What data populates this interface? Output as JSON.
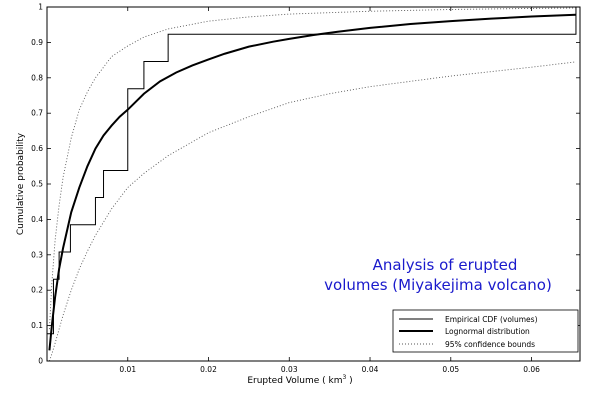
{
  "chart_data": {
    "type": "line",
    "title": "",
    "xlabel": "Erupted Volume ( km",
    "xlabel_sup": "3",
    "xlabel_end": " )",
    "ylabel": "Cumulative probability",
    "xlim": [
      0,
      0.066
    ],
    "ylim": [
      0,
      1
    ],
    "xticks": [
      0.01,
      0.02,
      0.03,
      0.04,
      0.05,
      0.06
    ],
    "xtick_labels": [
      "0.01",
      "0.02",
      "0.03",
      "0.04",
      "0.05",
      "0.06"
    ],
    "yticks": [
      0,
      0.1,
      0.2,
      0.3,
      0.4,
      0.5,
      0.6,
      0.7,
      0.8,
      0.9,
      1
    ],
    "ytick_labels": [
      "0",
      "0.1",
      "0.2",
      "0.3",
      "0.4",
      "0.5",
      "0.6",
      "0.7",
      "0.8",
      "0.9",
      "1"
    ],
    "grid": false,
    "legend_position": "bottom-right",
    "annotation": [
      "Analysis of erupted",
      "volumes (Miyakejima volcano)"
    ],
    "series": [
      {
        "name": "Empirical CDF (volumes)",
        "style": "stairs",
        "x": [
          0,
          0.0008,
          0.0008,
          0.0015,
          0.0015,
          0.0029,
          0.0029,
          0.0035,
          0.0035,
          0.006,
          0.006,
          0.007,
          0.007,
          0.01,
          0.01,
          0.012,
          0.012,
          0.015,
          0.015,
          0.0655,
          0.0655
        ],
        "y": [
          0.077,
          0.077,
          0.231,
          0.231,
          0.308,
          0.308,
          0.385,
          0.385,
          0.385,
          0.385,
          0.462,
          0.462,
          0.538,
          0.538,
          0.769,
          0.769,
          0.846,
          0.846,
          0.923,
          0.923,
          1.0
        ]
      },
      {
        "name": "Lognormal distribution",
        "style": "solid-thick",
        "x": [
          0.0003,
          0.0006,
          0.001,
          0.0015,
          0.002,
          0.003,
          0.004,
          0.005,
          0.006,
          0.007,
          0.008,
          0.009,
          0.01,
          0.012,
          0.014,
          0.016,
          0.018,
          0.02,
          0.022,
          0.025,
          0.028,
          0.03,
          0.033,
          0.036,
          0.04,
          0.045,
          0.05,
          0.055,
          0.06,
          0.0655
        ],
        "y": [
          0.03,
          0.1,
          0.18,
          0.26,
          0.32,
          0.42,
          0.49,
          0.55,
          0.6,
          0.637,
          0.665,
          0.69,
          0.71,
          0.755,
          0.79,
          0.815,
          0.835,
          0.852,
          0.868,
          0.888,
          0.902,
          0.91,
          0.921,
          0.93,
          0.941,
          0.952,
          0.96,
          0.967,
          0.973,
          0.978
        ]
      },
      {
        "name": "95% confidence bounds",
        "style": "dotted",
        "x": [
          0.0003,
          0.0006,
          0.001,
          0.0015,
          0.002,
          0.003,
          0.004,
          0.005,
          0.006,
          0.008,
          0.01,
          0.012,
          0.015,
          0.02,
          0.025,
          0.03,
          0.04,
          0.05,
          0.06,
          0.0655
        ],
        "y": [
          0.09,
          0.22,
          0.34,
          0.44,
          0.52,
          0.63,
          0.71,
          0.76,
          0.8,
          0.86,
          0.89,
          0.915,
          0.938,
          0.96,
          0.972,
          0.98,
          0.988,
          0.993,
          0.996,
          0.997
        ]
      },
      {
        "name": "95% confidence bounds",
        "style": "dotted",
        "x": [
          0.0003,
          0.0006,
          0.001,
          0.0015,
          0.002,
          0.003,
          0.004,
          0.005,
          0.006,
          0.008,
          0.01,
          0.012,
          0.015,
          0.02,
          0.025,
          0.03,
          0.035,
          0.04,
          0.05,
          0.06,
          0.0655
        ],
        "y": [
          0.0,
          0.02,
          0.05,
          0.09,
          0.13,
          0.2,
          0.26,
          0.31,
          0.355,
          0.43,
          0.49,
          0.53,
          0.58,
          0.645,
          0.69,
          0.73,
          0.755,
          0.775,
          0.805,
          0.83,
          0.845
        ]
      }
    ],
    "legend": [
      {
        "label": "Empirical CDF (volumes)",
        "style": "solid-thin"
      },
      {
        "label": "Lognormal distribution",
        "style": "solid-thick"
      },
      {
        "label": "95% confidence bounds",
        "style": "dotted"
      }
    ]
  }
}
